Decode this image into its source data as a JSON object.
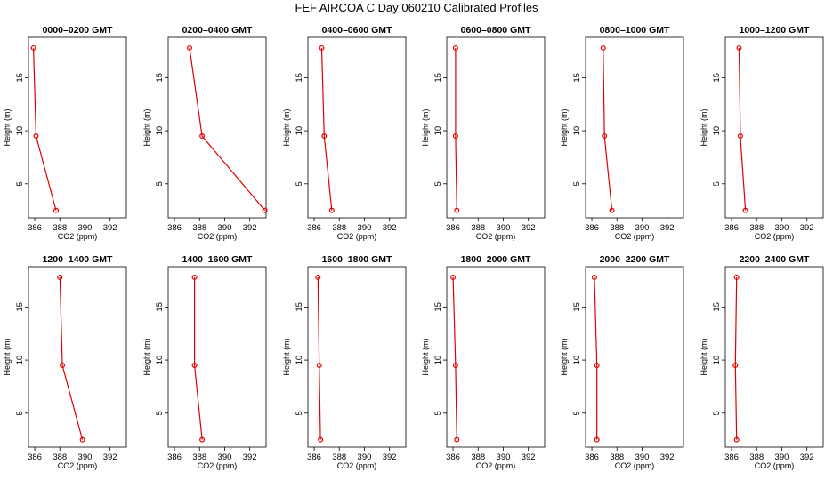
{
  "chart_data": {
    "type": "line",
    "title": "FEF  AIRCOA C  Day 060210  Calibrated Profiles",
    "xlabel": "CO2 (ppm)",
    "ylabel": "Height (m)",
    "xlim": [
      385.5,
      393.3
    ],
    "ylim": [
      1.8,
      18.8
    ],
    "xticks": [
      386,
      388,
      390,
      392
    ],
    "yticks": [
      5,
      10,
      15
    ],
    "heights": [
      17.8,
      9.5,
      2.5
    ],
    "series_color": "#e00000",
    "panels": [
      {
        "title": "0000–0200 GMT",
        "co2": [
          385.9,
          386.1,
          387.7
        ]
      },
      {
        "title": "0200–0400 GMT",
        "co2": [
          387.2,
          388.2,
          393.2
        ]
      },
      {
        "title": "0400–0600 GMT",
        "co2": [
          386.6,
          386.8,
          387.4
        ]
      },
      {
        "title": "0600–0800 GMT",
        "co2": [
          386.2,
          386.2,
          386.3
        ]
      },
      {
        "title": "0800–1000 GMT",
        "co2": [
          386.9,
          387.0,
          387.6
        ]
      },
      {
        "title": "1000–1200 GMT",
        "co2": [
          386.6,
          386.7,
          387.1
        ]
      },
      {
        "title": "1200–1400 GMT",
        "co2": [
          388.0,
          388.2,
          389.8
        ]
      },
      {
        "title": "1400–1600 GMT",
        "co2": [
          387.6,
          387.6,
          388.2
        ]
      },
      {
        "title": "1600–1800 GMT",
        "co2": [
          386.3,
          386.4,
          386.5
        ]
      },
      {
        "title": "1800–2000 GMT",
        "co2": [
          386.0,
          386.2,
          386.3
        ]
      },
      {
        "title": "2000–2200 GMT",
        "co2": [
          386.2,
          386.4,
          386.4
        ]
      },
      {
        "title": "2200–2400 GMT",
        "co2": [
          386.4,
          386.3,
          386.4
        ]
      }
    ]
  }
}
